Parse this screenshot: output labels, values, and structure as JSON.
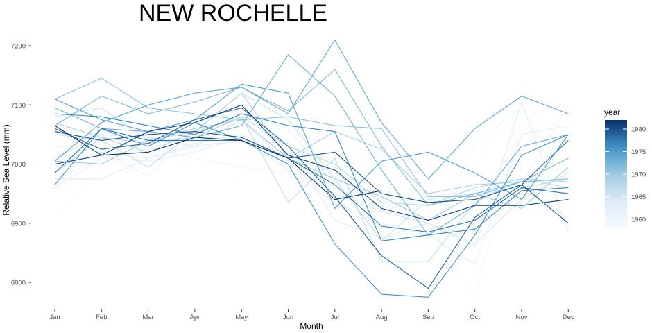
{
  "chart_data": {
    "type": "line",
    "title": "NEW ROCHELLE",
    "xlabel": "Month",
    "ylabel": "Relative Sea Level (mm)",
    "categories": [
      "Jan",
      "Feb",
      "Mar",
      "Apr",
      "May",
      "Jun",
      "Jul",
      "Aug",
      "Sep",
      "Oct",
      "Nov",
      "Dec"
    ],
    "ylim": [
      6755,
      7225
    ],
    "yticks": [
      6800,
      6900,
      7000,
      7100,
      7200
    ],
    "grid": false,
    "color_scale": {
      "title": "year",
      "min": 1958,
      "max": 1982,
      "ticks": [
        1960,
        1965,
        1970,
        1975,
        1980
      ],
      "low_color": "#f7fbff",
      "high_color": "#08306b"
    },
    "series": [
      {
        "year": 1958,
        "values": [
          6910,
          6990,
          7020,
          7040,
          7030,
          6995,
          6990,
          6910,
          6905,
          6990,
          7135,
          6950
        ]
      },
      {
        "year": 1959,
        "values": [
          7015,
          7035,
          7045,
          7025,
          7080,
          7055,
          6980,
          6895,
          6900,
          6775,
          7080,
          6990
        ]
      },
      {
        "year": 1960,
        "values": [
          6975,
          7010,
          7025,
          7010,
          6995,
          6985,
          6960,
          6945,
          6870,
          7035,
          7095,
          6985
        ]
      },
      {
        "year": 1961,
        "values": [
          7030,
          7020,
          6980,
          7050,
          7085,
          7060,
          6965,
          6875,
          6890,
          6900,
          6965,
          7100
        ]
      },
      {
        "year": 1962,
        "values": [
          6995,
          7020,
          7010,
          7035,
          7050,
          7005,
          6990,
          6920,
          6945,
          6955,
          6965,
          6980
        ]
      },
      {
        "year": 1963,
        "values": [
          6960,
          7010,
          7005,
          7020,
          7045,
          6990,
          6935,
          6900,
          6880,
          6830,
          7050,
          7065
        ]
      },
      {
        "year": 1964,
        "values": [
          6975,
          6975,
          7010,
          7030,
          7040,
          7035,
          6905,
          6875,
          6900,
          6860,
          7105,
          6885
        ]
      },
      {
        "year": 1965,
        "values": [
          7010,
          7050,
          7045,
          7030,
          7075,
          7000,
          6950,
          6920,
          6900,
          6865,
          6940,
          6985
        ]
      },
      {
        "year": 1966,
        "values": [
          7080,
          7095,
          7040,
          7055,
          7120,
          7075,
          6975,
          6870,
          6940,
          6950,
          6960,
          6975
        ]
      },
      {
        "year": 1967,
        "values": [
          7050,
          7040,
          6995,
          7055,
          7080,
          6935,
          7010,
          6835,
          6835,
          6935,
          6975,
          6960
        ]
      },
      {
        "year": 1968,
        "values": [
          6985,
          7045,
          7035,
          7045,
          7080,
          7030,
          7000,
          6935,
          6930,
          6960,
          6975,
          6970
        ]
      },
      {
        "year": 1969,
        "values": [
          7070,
          7045,
          7020,
          7055,
          7120,
          7010,
          7055,
          7025,
          6950,
          6965,
          6970,
          6975
        ]
      },
      {
        "year": 1970,
        "values": [
          7005,
          7000,
          7040,
          7060,
          7075,
          7010,
          6975,
          6945,
          6905,
          6950,
          6925,
          6995
        ]
      },
      {
        "year": 1971,
        "values": [
          7110,
          7145,
          7095,
          7085,
          7075,
          7080,
          7065,
          7060,
          6945,
          6945,
          6970,
          6975
        ]
      },
      {
        "year": 1972,
        "values": [
          7065,
          7115,
          7085,
          7105,
          7130,
          7090,
          7160,
          7030,
          6930,
          6950,
          6970,
          7010
        ]
      },
      {
        "year": 1973,
        "values": [
          7095,
          7060,
          7055,
          7045,
          7065,
          7185,
          7115,
          6990,
          6880,
          6930,
          7030,
          7050
        ]
      },
      {
        "year": 1974,
        "values": [
          7005,
          7070,
          7100,
          7120,
          7130,
          7085,
          7210,
          7070,
          6975,
          7060,
          7115,
          7085
        ]
      },
      {
        "year": 1975,
        "values": [
          7110,
          7075,
          7055,
          7075,
          7135,
          7120,
          6925,
          7005,
          7020,
          6985,
          6940,
          7050
        ]
      },
      {
        "year": 1976,
        "values": [
          6965,
          7060,
          7030,
          7070,
          7040,
          7000,
          6865,
          6780,
          6775,
          6880,
          7015,
          7050
        ]
      },
      {
        "year": 1977,
        "values": [
          7085,
          7080,
          7065,
          7050,
          7085,
          7065,
          7055,
          6870,
          6880,
          6890,
          6955,
          6960
        ]
      },
      {
        "year": 1978,
        "values": [
          6985,
          7060,
          7040,
          7040,
          7040,
          7010,
          6965,
          6895,
          6885,
          6905,
          6960,
          6950
        ]
      },
      {
        "year": 1979,
        "values": [
          7060,
          7025,
          7035,
          7075,
          7095,
          7030,
          6945,
          6845,
          6790,
          6910,
          6965,
          7040
        ]
      },
      {
        "year": 1980,
        "values": [
          7055,
          7040,
          7050,
          7055,
          7045,
          7010,
          7020,
          6950,
          6935,
          6940,
          6965,
          6900
        ]
      },
      {
        "year": 1981,
        "values": [
          7000,
          7015,
          7055,
          7070,
          7100,
          7015,
          6990,
          6925,
          6905,
          6930,
          6930,
          6940
        ]
      },
      {
        "year": 1982,
        "values": [
          7065,
          7015,
          7020,
          7045,
          7040,
          7010,
          6940,
          6955,
          null,
          null,
          null,
          null
        ]
      }
    ]
  }
}
